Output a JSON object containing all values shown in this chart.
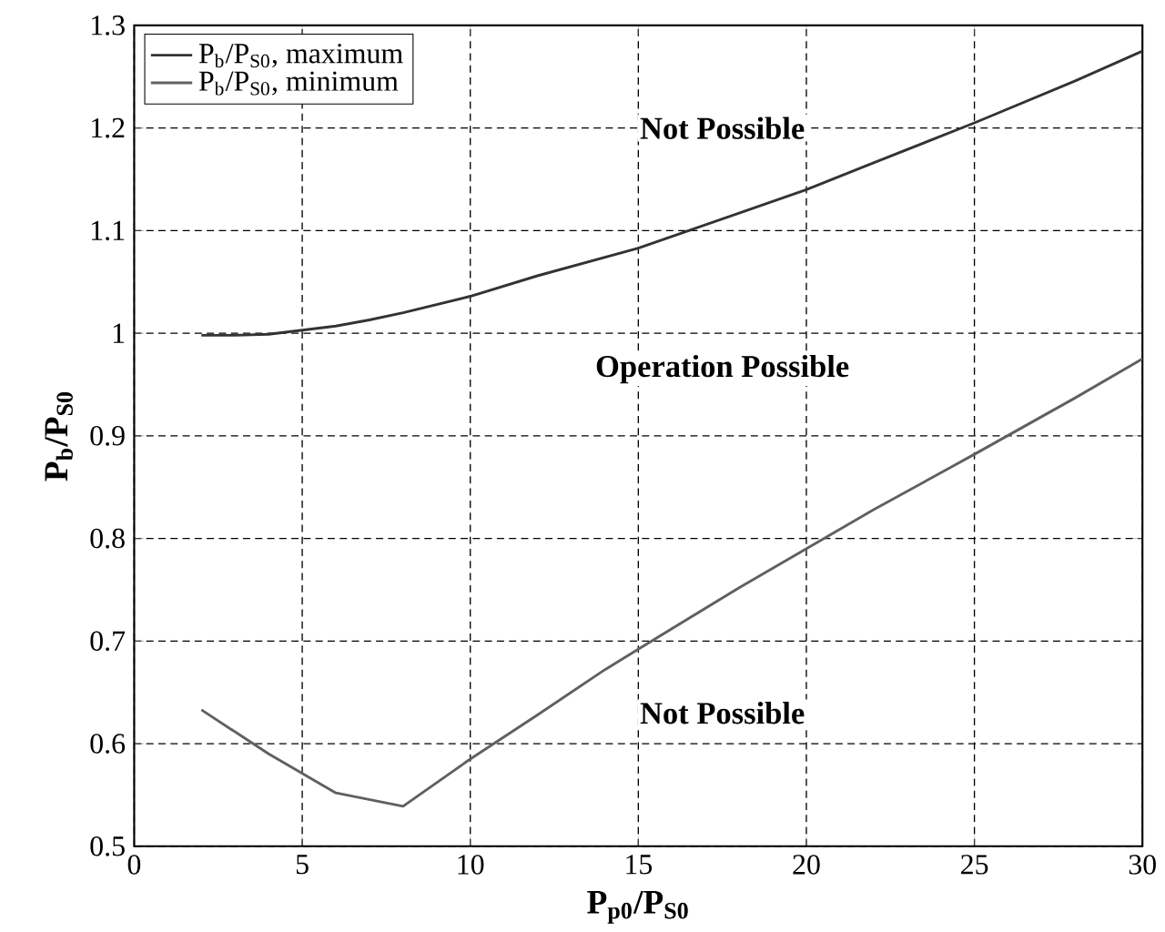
{
  "chart_data": {
    "type": "line",
    "xlabel": "P$_{p0}$/P$_{S0}$",
    "ylabel": "P$_{b}$/P$_{S0}$",
    "x": [
      2,
      3,
      4,
      5,
      6,
      7,
      8,
      10,
      12,
      15,
      18,
      20,
      22,
      25,
      28,
      30
    ],
    "series": [
      {
        "name": "P$_{b}$/P$_{S0}$, maximum",
        "color": "#333333",
        "values": [
          0.998,
          0.998,
          0.999,
          1.003,
          1.007,
          1.013,
          1.02,
          1.036,
          1.056,
          1.083,
          1.117,
          1.14,
          1.166,
          1.205,
          1.246,
          1.275
        ]
      },
      {
        "name": "P$_{b}$/P$_{S0}$, minimum",
        "color": "#606060",
        "x": [
          2,
          4,
          6,
          8,
          10,
          12,
          14,
          15,
          18,
          20,
          22,
          25,
          28,
          30
        ],
        "values": [
          0.633,
          0.59,
          0.552,
          0.539,
          0.585,
          0.628,
          0.672,
          0.692,
          0.752,
          0.79,
          0.828,
          0.882,
          0.937,
          0.975
        ]
      }
    ],
    "annotations": [
      "Not Possible",
      "Operation Possible",
      "Not Possible"
    ],
    "xlim": [
      0,
      30
    ],
    "ylim": [
      0.5,
      1.3
    ],
    "xticks": [
      0,
      5,
      10,
      15,
      20,
      25,
      30
    ],
    "yticks": [
      0.5,
      0.6,
      0.7,
      0.8,
      0.9,
      1,
      1.1,
      1.2,
      1.3
    ],
    "grid": true,
    "legend": "top left",
    "line_style": "solid",
    "marker": "none"
  }
}
